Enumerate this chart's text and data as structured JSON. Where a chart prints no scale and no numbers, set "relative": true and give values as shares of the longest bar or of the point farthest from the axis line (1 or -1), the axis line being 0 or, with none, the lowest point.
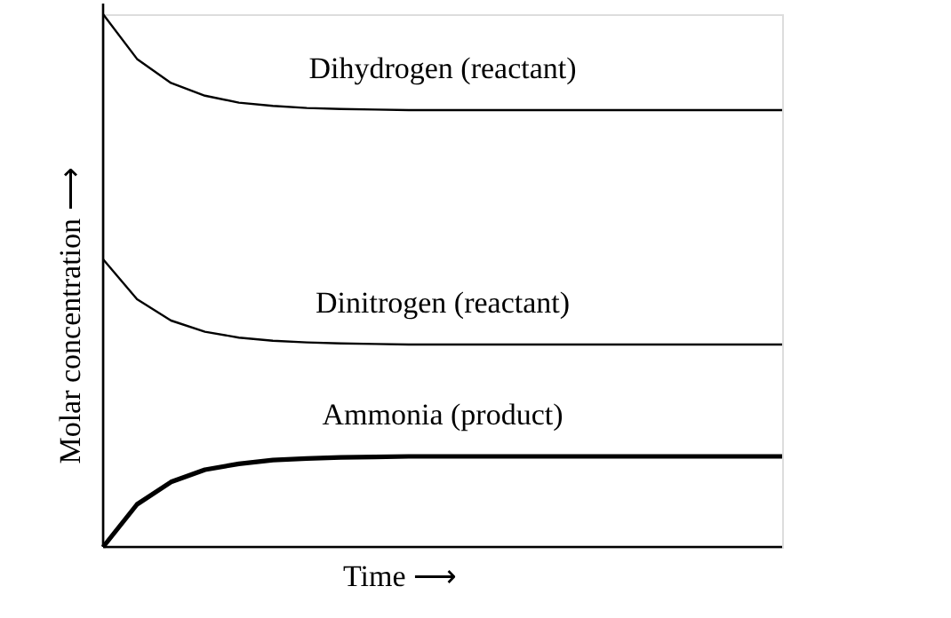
{
  "chart_data": {
    "type": "line",
    "relative": true,
    "xlabel": "Time ⟶",
    "ylabel": "Molar concentration ⟶",
    "marker": "none",
    "line_style": "solid",
    "categories": [
      null,
      null,
      null,
      null,
      null,
      null,
      null,
      null,
      null,
      null,
      null,
      null,
      null,
      null,
      null,
      null,
      null,
      null,
      null,
      null,
      null
    ],
    "series": [
      {
        "name": "Dihydrogen (reactant)",
        "color": "#000000",
        "values": [
          1.0,
          0.916,
          0.871,
          0.847,
          0.834,
          0.828,
          0.824,
          0.822,
          0.821,
          0.82,
          0.82,
          0.82,
          0.82,
          0.82,
          0.82,
          0.82,
          0.82,
          0.82,
          0.82,
          0.82,
          0.82
        ]
      },
      {
        "name": "Dinitrogen (reactant)",
        "color": "#000000",
        "values": [
          0.54,
          0.465,
          0.425,
          0.404,
          0.393,
          0.387,
          0.384,
          0.382,
          0.381,
          0.38,
          0.38,
          0.38,
          0.38,
          0.38,
          0.38,
          0.38,
          0.38,
          0.38,
          0.38,
          0.38,
          0.38
        ]
      },
      {
        "name": "Ammonia (product)",
        "color": "#000000",
        "values": [
          0.0,
          0.08,
          0.122,
          0.145,
          0.156,
          0.163,
          0.166,
          0.168,
          0.169,
          0.17,
          0.17,
          0.17,
          0.17,
          0.17,
          0.17,
          0.17,
          0.17,
          0.17,
          0.17,
          0.17,
          0.17
        ]
      }
    ]
  }
}
